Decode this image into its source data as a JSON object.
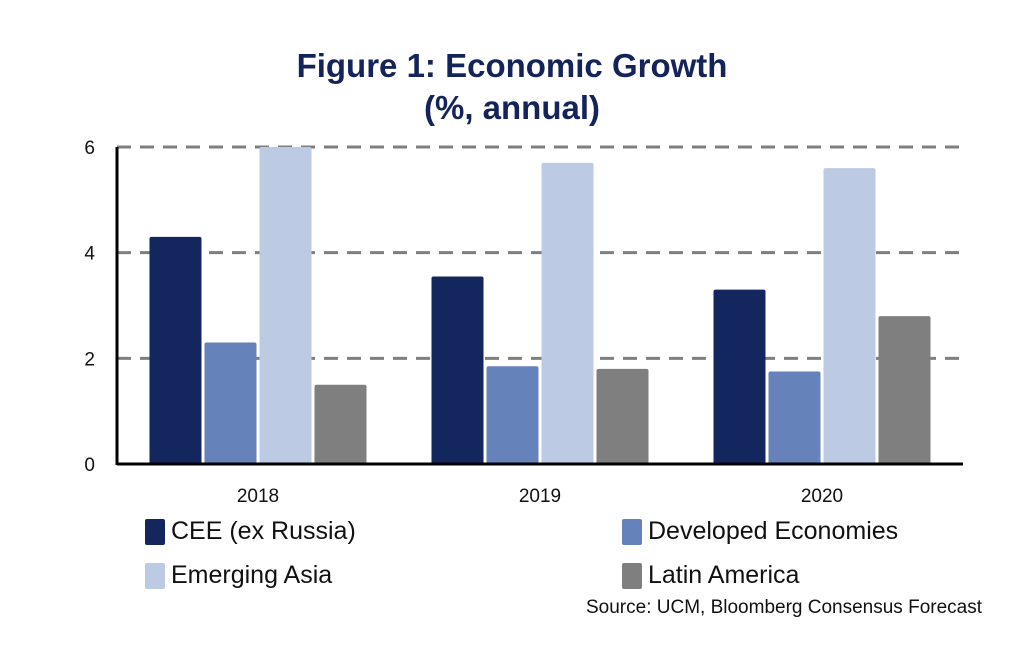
{
  "chart_data": {
    "type": "bar",
    "title": "Figure 1: Economic Growth",
    "subtitle": "(%, annual)",
    "xlabel": "",
    "ylabel": "",
    "categories": [
      "2018",
      "2019",
      "2020"
    ],
    "ylim": [
      0,
      6
    ],
    "yticks": [
      0,
      2,
      4,
      6
    ],
    "grid": true,
    "legend_position": "bottom",
    "series": [
      {
        "name": "CEE (ex Russia)",
        "color": "#14265e",
        "values": [
          4.3,
          3.55,
          3.3
        ]
      },
      {
        "name": "Developed Economies",
        "color": "#6582bb",
        "values": [
          2.3,
          1.85,
          1.75
        ]
      },
      {
        "name": "Emerging Asia",
        "color": "#bccbe3",
        "values": [
          6.0,
          5.7,
          5.6
        ]
      },
      {
        "name": "Latin America",
        "color": "#7f7f7f",
        "values": [
          1.5,
          1.8,
          2.8
        ]
      }
    ],
    "source": "Source: UCM, Bloomberg Consensus Forecast"
  }
}
